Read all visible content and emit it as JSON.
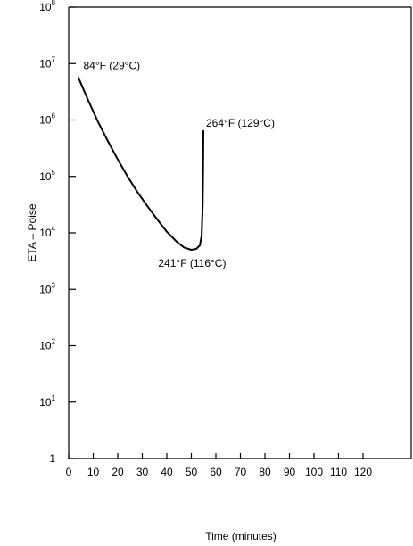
{
  "chart_data": {
    "type": "line",
    "title": "",
    "xlabel": "Time (minutes)",
    "ylabel": "ETA – Poise",
    "xlim": [
      0,
      125
    ],
    "ylim_log10": [
      0,
      8
    ],
    "y_scale": "log",
    "grid": false,
    "x_ticks": [
      "0",
      "10",
      "20",
      "30",
      "40",
      "50",
      "60",
      "70",
      "80",
      "90",
      "100",
      "110",
      "120"
    ],
    "y_ticks": [
      {
        "base": "1",
        "exp": ""
      },
      {
        "base": "10",
        "exp": "1"
      },
      {
        "base": "10",
        "exp": "2"
      },
      {
        "base": "10",
        "exp": "3"
      },
      {
        "base": "10",
        "exp": "4"
      },
      {
        "base": "10",
        "exp": "5"
      },
      {
        "base": "10",
        "exp": "6"
      },
      {
        "base": "10",
        "exp": "7"
      },
      {
        "base": "10",
        "exp": "8"
      }
    ],
    "series": [
      {
        "color": "#000000",
        "points": [
          {
            "x": 4,
            "y": 5600000
          },
          {
            "x": 8,
            "y": 2200000
          },
          {
            "x": 12,
            "y": 920000
          },
          {
            "x": 16,
            "y": 420000
          },
          {
            "x": 20,
            "y": 200000
          },
          {
            "x": 24,
            "y": 100000
          },
          {
            "x": 28,
            "y": 53000
          },
          {
            "x": 32,
            "y": 30000
          },
          {
            "x": 36,
            "y": 17500
          },
          {
            "x": 40,
            "y": 10500
          },
          {
            "x": 44,
            "y": 7000
          },
          {
            "x": 47,
            "y": 5500
          },
          {
            "x": 50,
            "y": 5000
          },
          {
            "x": 52,
            "y": 5200
          },
          {
            "x": 53.5,
            "y": 6000
          },
          {
            "x": 54.2,
            "y": 9000
          },
          {
            "x": 54.6,
            "y": 30000
          },
          {
            "x": 54.8,
            "y": 150000
          },
          {
            "x": 54.9,
            "y": 640000
          }
        ]
      }
    ],
    "annotations": [
      {
        "text": "84°F (29°C)",
        "x": 6,
        "y": 8000000
      },
      {
        "text": "264°F (129°C)",
        "x": 56,
        "y": 760000
      },
      {
        "text": "241°F (116°C)",
        "x": 36.5,
        "y": 2500
      }
    ]
  }
}
